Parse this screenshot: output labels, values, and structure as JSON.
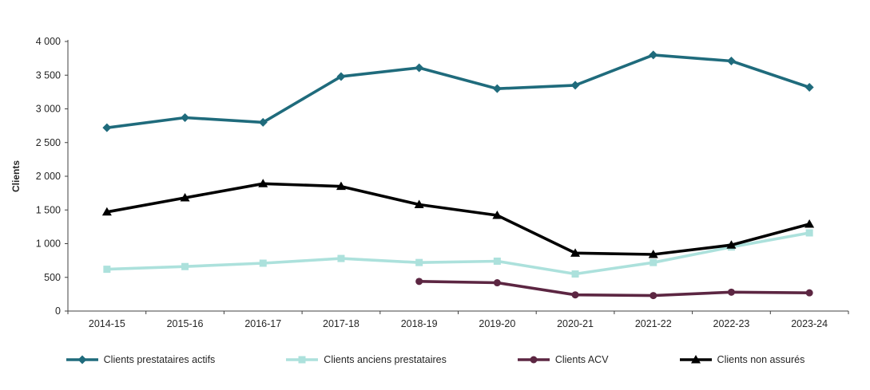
{
  "chart_data": {
    "type": "line",
    "title": "",
    "xlabel": "",
    "ylabel": "Clients",
    "ylim": [
      0,
      4000
    ],
    "ytick_step": 500,
    "ytick_labels": [
      "0",
      "500",
      "1 000",
      "1 500",
      "2 000",
      "2 500",
      "3 000",
      "3 500",
      "4 000"
    ],
    "grid": false,
    "legend_position": "bottom",
    "axis_color": "#404040",
    "text_color": "#262626",
    "categories": [
      "2014-15",
      "2015-16",
      "2016-17",
      "2017-18",
      "2018-19",
      "2019-20",
      "2020-21",
      "2021-22",
      "2022-23",
      "2023-24"
    ],
    "series": [
      {
        "name": "Clients prestataires actifs",
        "color": "#1F6B7C",
        "marker": "diamond",
        "values": [
          2720,
          2870,
          2800,
          3480,
          3610,
          3300,
          3350,
          3800,
          3710,
          3320
        ]
      },
      {
        "name": "Clients anciens prestataires",
        "color": "#ACE1DC",
        "marker": "square",
        "values": [
          620,
          660,
          710,
          780,
          720,
          740,
          550,
          720,
          950,
          1160
        ]
      },
      {
        "name": "Clients ACV",
        "color": "#5C2642",
        "marker": "circle",
        "values": [
          null,
          null,
          null,
          null,
          440,
          420,
          240,
          230,
          280,
          270
        ]
      },
      {
        "name": "Clients non assurés",
        "color": "#000000",
        "marker": "triangle",
        "values": [
          1470,
          1680,
          1890,
          1850,
          1580,
          1420,
          860,
          840,
          980,
          1290
        ]
      }
    ]
  }
}
